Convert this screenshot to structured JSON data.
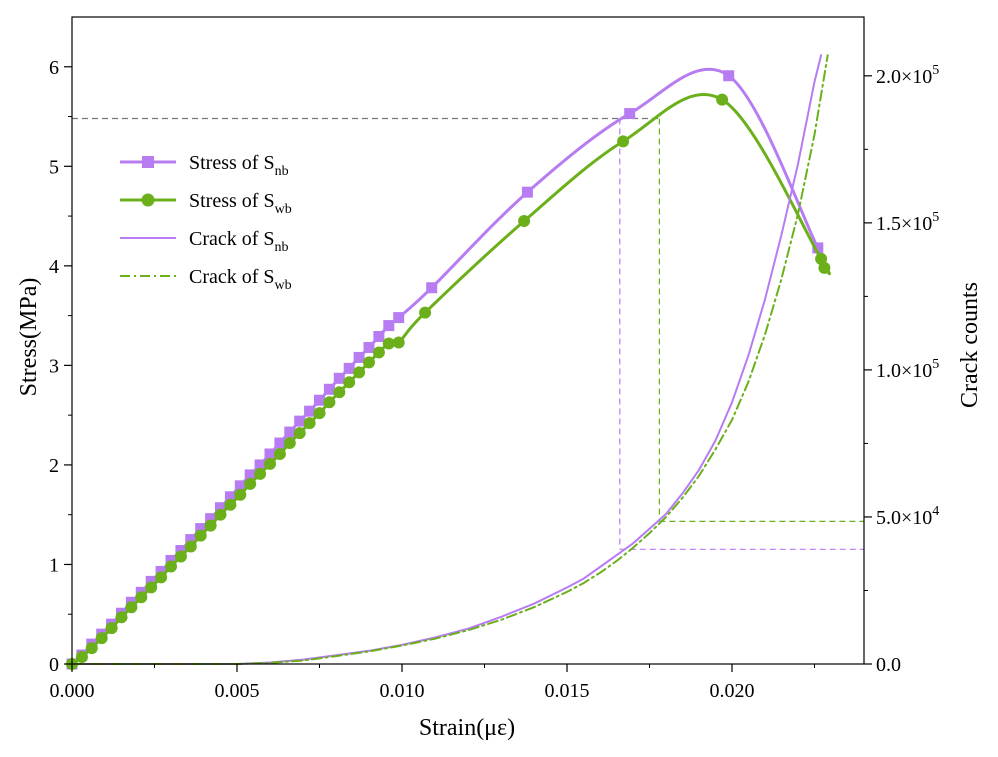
{
  "chart_data": {
    "type": "line",
    "xlabel": "Strain(με)",
    "ylabel_left": "Stress(MPa)",
    "ylabel_right": "Crack counts",
    "xlim": [
      0,
      0.024
    ],
    "ylim_left": [
      0,
      6.5
    ],
    "ylim_right": [
      0,
      220000
    ],
    "x_ticks": [
      "0.000",
      "0.005",
      "0.010",
      "0.015",
      "0.020"
    ],
    "x_tick_values": [
      0,
      0.005,
      0.01,
      0.015,
      0.02
    ],
    "y_left_ticks": [
      "0",
      "1",
      "2",
      "3",
      "4",
      "5",
      "6"
    ],
    "y_left_tick_values": [
      0,
      1,
      2,
      3,
      4,
      5,
      6
    ],
    "y_right_ticks": [
      {
        "value": 0,
        "mant": "0.0",
        "exp": ""
      },
      {
        "value": 50000,
        "mant": "5.0×10",
        "exp": "4"
      },
      {
        "value": 100000,
        "mant": "1.0×10",
        "exp": "5"
      },
      {
        "value": 150000,
        "mant": "1.5×10",
        "exp": "5"
      },
      {
        "value": 200000,
        "mant": "2.0×10",
        "exp": "5"
      }
    ],
    "legend": [
      {
        "prefix": "Stress  of  S",
        "sub": "nb",
        "color": "#b77cf2",
        "style": "solid-thick",
        "marker": "square"
      },
      {
        "prefix": "Stress  of  S",
        "sub": "wb",
        "color": "#6bb01b",
        "style": "solid-thick",
        "marker": "circle"
      },
      {
        "prefix": "Crack  of  S",
        "sub": "nb",
        "color": "#b77cf2",
        "style": "solid-thin",
        "marker": "none"
      },
      {
        "prefix": "Crack  of  S",
        "sub": "wb",
        "color": "#6bb01b",
        "style": "dashdot",
        "marker": "none"
      }
    ],
    "series": [
      {
        "name": "Stress of Snb",
        "axis": "left",
        "color": "#b77cf2",
        "marker": "square",
        "x": [
          0,
          0.0003,
          0.0006,
          0.0009,
          0.0012,
          0.0015,
          0.0018,
          0.0021,
          0.0024,
          0.0027,
          0.003,
          0.0033,
          0.0036,
          0.0039,
          0.0042,
          0.0045,
          0.0048,
          0.0051,
          0.0054,
          0.0057,
          0.006,
          0.0063,
          0.0066,
          0.0069,
          0.0072,
          0.0075,
          0.0078,
          0.0081,
          0.0084,
          0.0087,
          0.009,
          0.0093,
          0.0096,
          0.0099,
          0.0109,
          0.0138,
          0.0169,
          0.0199,
          0.0226
        ],
        "y": [
          0.0,
          0.09,
          0.2,
          0.3,
          0.4,
          0.51,
          0.62,
          0.72,
          0.83,
          0.93,
          1.04,
          1.14,
          1.25,
          1.36,
          1.46,
          1.57,
          1.68,
          1.79,
          1.9,
          2.0,
          2.11,
          2.22,
          2.33,
          2.44,
          2.54,
          2.65,
          2.76,
          2.87,
          2.97,
          3.08,
          3.18,
          3.29,
          3.4,
          3.48,
          3.78,
          4.74,
          5.53,
          5.91,
          4.18
        ]
      },
      {
        "name": "Stress of Swb",
        "axis": "left",
        "color": "#6bb01b",
        "marker": "circle",
        "x": [
          0,
          0.0003,
          0.0006,
          0.0009,
          0.0012,
          0.0015,
          0.0018,
          0.0021,
          0.0024,
          0.0027,
          0.003,
          0.0033,
          0.0036,
          0.0039,
          0.0042,
          0.0045,
          0.0048,
          0.0051,
          0.0054,
          0.0057,
          0.006,
          0.0063,
          0.0066,
          0.0069,
          0.0072,
          0.0075,
          0.0078,
          0.0081,
          0.0084,
          0.0087,
          0.009,
          0.0093,
          0.0096,
          0.0099,
          0.0107,
          0.0137,
          0.0167,
          0.0197,
          0.0227,
          0.0228
        ],
        "y": [
          0.0,
          0.07,
          0.16,
          0.26,
          0.36,
          0.47,
          0.57,
          0.67,
          0.77,
          0.87,
          0.98,
          1.08,
          1.18,
          1.29,
          1.39,
          1.5,
          1.6,
          1.7,
          1.81,
          1.91,
          2.01,
          2.11,
          2.22,
          2.32,
          2.42,
          2.52,
          2.63,
          2.73,
          2.83,
          2.93,
          3.03,
          3.13,
          3.22,
          3.23,
          3.53,
          4.45,
          5.25,
          5.67,
          4.07,
          3.98
        ]
      },
      {
        "name": "Crack of Snb",
        "axis": "right",
        "color": "#b77cf2",
        "style": "solid",
        "x": [
          0.0,
          0.005,
          0.006,
          0.007,
          0.008,
          0.009,
          0.01,
          0.011,
          0.012,
          0.013,
          0.014,
          0.015,
          0.0155,
          0.016,
          0.0165,
          0.017,
          0.0175,
          0.018,
          0.0185,
          0.019,
          0.0195,
          0.02,
          0.0205,
          0.021,
          0.0215,
          0.022,
          0.0225,
          0.0227
        ],
        "y": [
          0,
          0,
          500,
          1500,
          3000,
          4500,
          6500,
          9000,
          12000,
          16000,
          20500,
          26000,
          29000,
          33000,
          37000,
          41000,
          46000,
          51000,
          58000,
          66000,
          76000,
          89000,
          105000,
          124000,
          146000,
          170000,
          198000,
          207000
        ]
      },
      {
        "name": "Crack of Swb",
        "axis": "right",
        "color": "#6bb01b",
        "style": "dashdot",
        "x": [
          0.0,
          0.005,
          0.006,
          0.007,
          0.008,
          0.009,
          0.01,
          0.011,
          0.012,
          0.013,
          0.014,
          0.015,
          0.0155,
          0.016,
          0.0165,
          0.017,
          0.0175,
          0.018,
          0.0185,
          0.019,
          0.0195,
          0.02,
          0.0205,
          0.021,
          0.0215,
          0.022,
          0.0225,
          0.0229
        ],
        "y": [
          0,
          0,
          400,
          1200,
          2700,
          4300,
          6300,
          8600,
          11500,
          15000,
          19300,
          24500,
          27500,
          31000,
          35000,
          39500,
          44500,
          50000,
          56500,
          64000,
          73000,
          83000,
          96000,
          112000,
          131000,
          153000,
          180000,
          207000
        ]
      }
    ],
    "reference_lines": [
      {
        "kind": "h",
        "axis": "left",
        "y": 5.48,
        "x0": 0,
        "x1": 0.0178,
        "color": "#777777"
      },
      {
        "kind": "v",
        "x": 0.0166,
        "y0_left": 5.48,
        "y1_right": 39000,
        "color": "#b77cf2"
      },
      {
        "kind": "v",
        "x": 0.0178,
        "y0_left": 5.48,
        "y1_right": 48500,
        "color": "#6bb01b"
      },
      {
        "kind": "h",
        "axis": "right",
        "y": 39000,
        "x0": 0.0166,
        "x1": 0.024,
        "color": "#b77cf2"
      },
      {
        "kind": "h",
        "axis": "right",
        "y": 48500,
        "x0": 0.0178,
        "x1": 0.024,
        "color": "#6bb01b"
      }
    ]
  }
}
